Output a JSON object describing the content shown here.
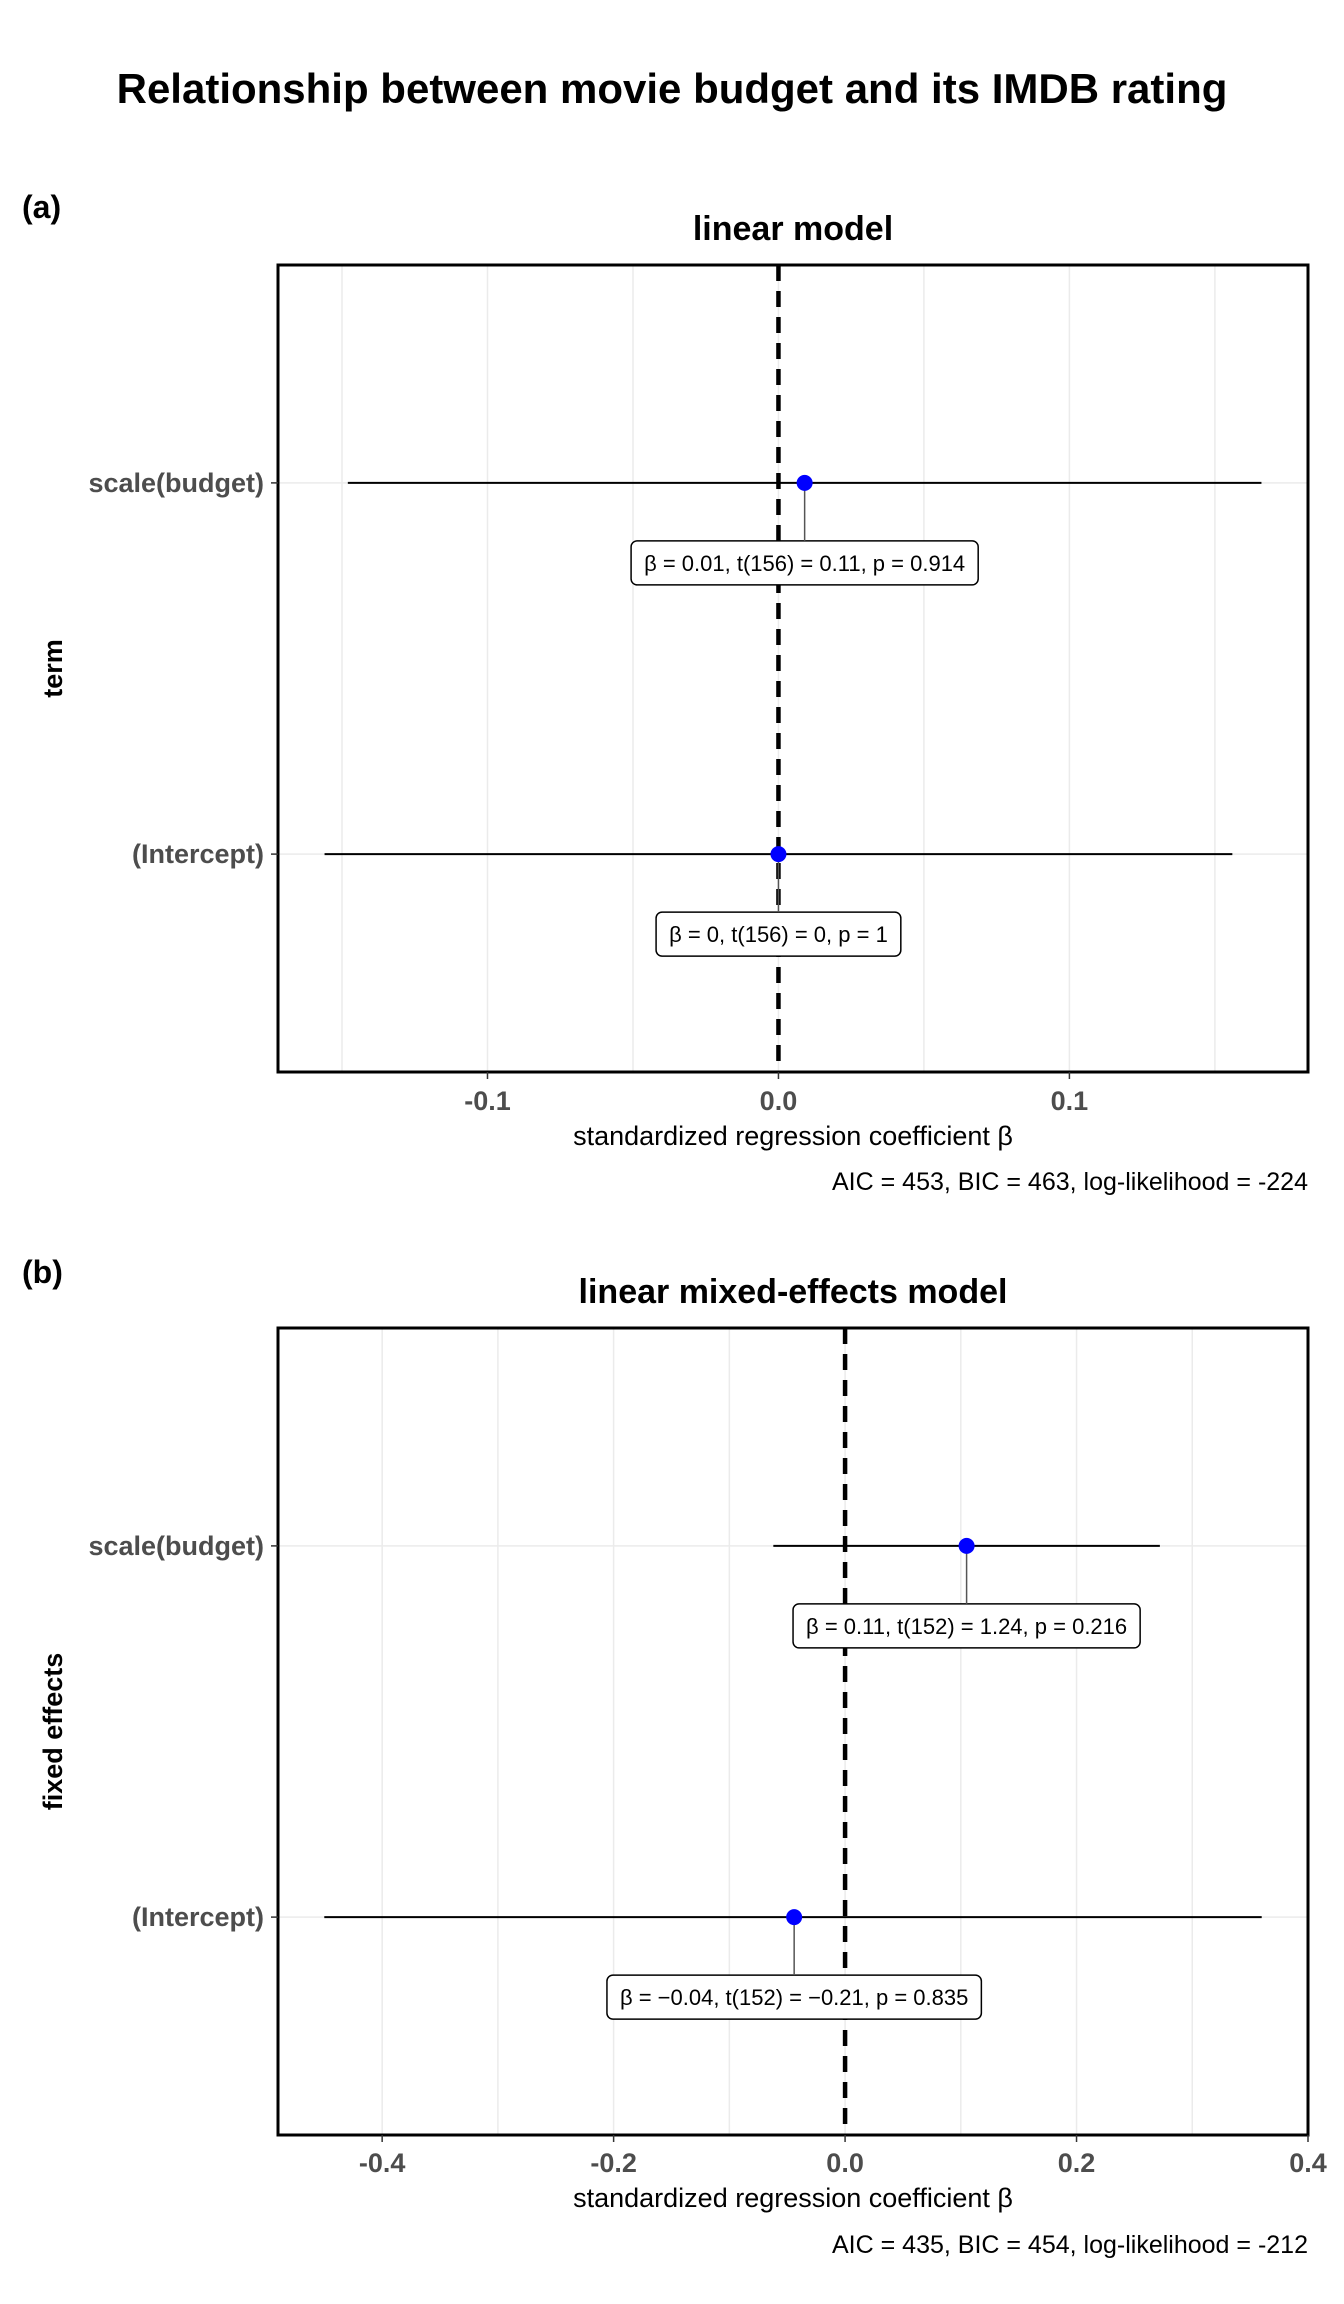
{
  "title": "Relationship between movie budget and its IMDB rating",
  "colors": {
    "point": "#0000ff",
    "line": "#000000",
    "grid": "#ebebeb",
    "zero_line": "#000000"
  },
  "chart_data": [
    {
      "type": "scatter",
      "tag": "(a)",
      "title": "linear model",
      "ylabel": "term",
      "xlabel": "standardized regression coefficient β",
      "caption": "AIC = 453, BIC = 463, log-likelihood = -224",
      "xlim": [
        -0.172,
        0.182
      ],
      "x_ticks": [
        -0.1,
        0.0,
        0.1
      ],
      "x_tick_labels": [
        "-0.1",
        "0.0",
        "0.1"
      ],
      "reference_line_x": 0,
      "grid": true,
      "terms": [
        {
          "term": "scale(budget)",
          "estimate": 0.009,
          "conf_low": -0.148,
          "conf_high": 0.166,
          "label": "β = 0.01,  t(156) = 0.11,  p = 0.914"
        },
        {
          "term": "(Intercept)",
          "estimate": 0.0,
          "conf_low": -0.156,
          "conf_high": 0.156,
          "label": "β = 0,  t(156) = 0,  p = 1"
        }
      ]
    },
    {
      "type": "scatter",
      "tag": "(b)",
      "title": "linear mixed-effects model",
      "ylabel": "fixed effects",
      "xlabel": "standardized regression coefficient β",
      "caption": "AIC = 435, BIC = 454, log-likelihood = -212",
      "xlim": [
        -0.49,
        0.4
      ],
      "x_ticks": [
        -0.4,
        -0.2,
        0.0,
        0.2,
        0.4
      ],
      "x_tick_labels": [
        "-0.4",
        "-0.2",
        "0.0",
        "0.2",
        "0.4"
      ],
      "reference_line_x": 0,
      "grid": true,
      "terms": [
        {
          "term": "scale(budget)",
          "estimate": 0.105,
          "conf_low": -0.062,
          "conf_high": 0.272,
          "label": "β = 0.11,  t(152) = 1.24,  p = 0.216"
        },
        {
          "term": "(Intercept)",
          "estimate": -0.044,
          "conf_low": -0.45,
          "conf_high": 0.36,
          "label": "β = −0.04,  t(152) = −0.21,  p = 0.835"
        }
      ]
    }
  ]
}
